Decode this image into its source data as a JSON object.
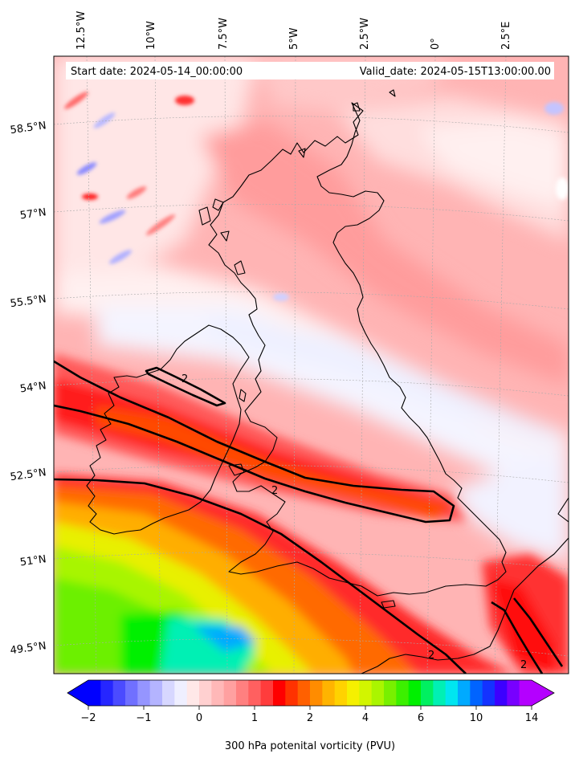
{
  "header": {
    "start_date": "Start date: 2024-05-14_00:00:00",
    "valid_date": "Valid_date: 2024-05-15T13:00:00.00"
  },
  "map": {
    "lon_labels": [
      "12.5°W",
      "10°W",
      "7.5°W",
      "5°W",
      "2.5°W",
      "0°",
      "2.5°E"
    ],
    "lat_labels": [
      "58.5°N",
      "57°N",
      "55.5°N",
      "54°N",
      "52.5°N",
      "51°N",
      "49.5°N"
    ],
    "contour_label": "2",
    "field": "300 hPa potential vorticity"
  },
  "colorbar": {
    "title": "300 hPa potenital vorticity (PVU)",
    "ticks": [
      "−2",
      "−1",
      "0",
      "1",
      "2",
      "4",
      "6",
      "10",
      "14"
    ],
    "colors": [
      "#0000ff",
      "#2626ff",
      "#4b4bff",
      "#7070ff",
      "#9595ff",
      "#b4b4ff",
      "#d7d7ff",
      "#efefff",
      "#ffe8e8",
      "#ffd0d0",
      "#ffb8b8",
      "#ffa0a0",
      "#ff8080",
      "#ff6060",
      "#ff3c3c",
      "#ff0000",
      "#ff3200",
      "#ff6000",
      "#ff8c00",
      "#ffb400",
      "#ffd200",
      "#f5f000",
      "#d2f500",
      "#aaf500",
      "#78f000",
      "#3cf000",
      "#00f000",
      "#00f060",
      "#00f0b4",
      "#00e6f0",
      "#00aaff",
      "#0064ff",
      "#1432ff",
      "#3c00ff",
      "#7800ff",
      "#b400ff"
    ]
  }
}
